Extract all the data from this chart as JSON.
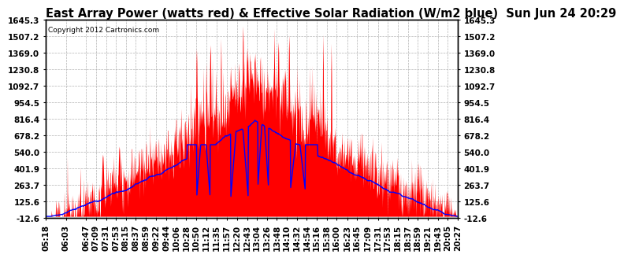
{
  "title": "East Array Power (watts red) & Effective Solar Radiation (W/m2 blue)  Sun Jun 24 20:29",
  "copyright": "Copyright 2012 Cartronics.com",
  "background_color": "#ffffff",
  "plot_bg_color": "#ffffff",
  "grid_color": "#aaaaaa",
  "yticks": [
    1645.3,
    1507.2,
    1369.0,
    1230.8,
    1092.7,
    954.5,
    816.4,
    678.2,
    540.0,
    401.9,
    263.7,
    125.6,
    -12.6
  ],
  "ymin": -12.6,
  "ymax": 1645.3,
  "xtick_labels": [
    "05:18",
    "06:03",
    "06:47",
    "07:09",
    "07:31",
    "07:53",
    "08:15",
    "08:37",
    "08:59",
    "09:22",
    "09:44",
    "10:06",
    "10:28",
    "10:50",
    "11:12",
    "11:35",
    "11:57",
    "12:20",
    "12:43",
    "13:04",
    "13:26",
    "13:48",
    "14:10",
    "14:32",
    "14:54",
    "15:16",
    "15:38",
    "16:00",
    "16:23",
    "16:45",
    "17:09",
    "17:31",
    "17:53",
    "18:15",
    "18:37",
    "18:59",
    "19:21",
    "19:43",
    "20:05",
    "20:27"
  ],
  "red_color": "#ff0000",
  "blue_color": "#0000ff",
  "title_fontsize": 10.5,
  "tick_fontsize": 7.5
}
